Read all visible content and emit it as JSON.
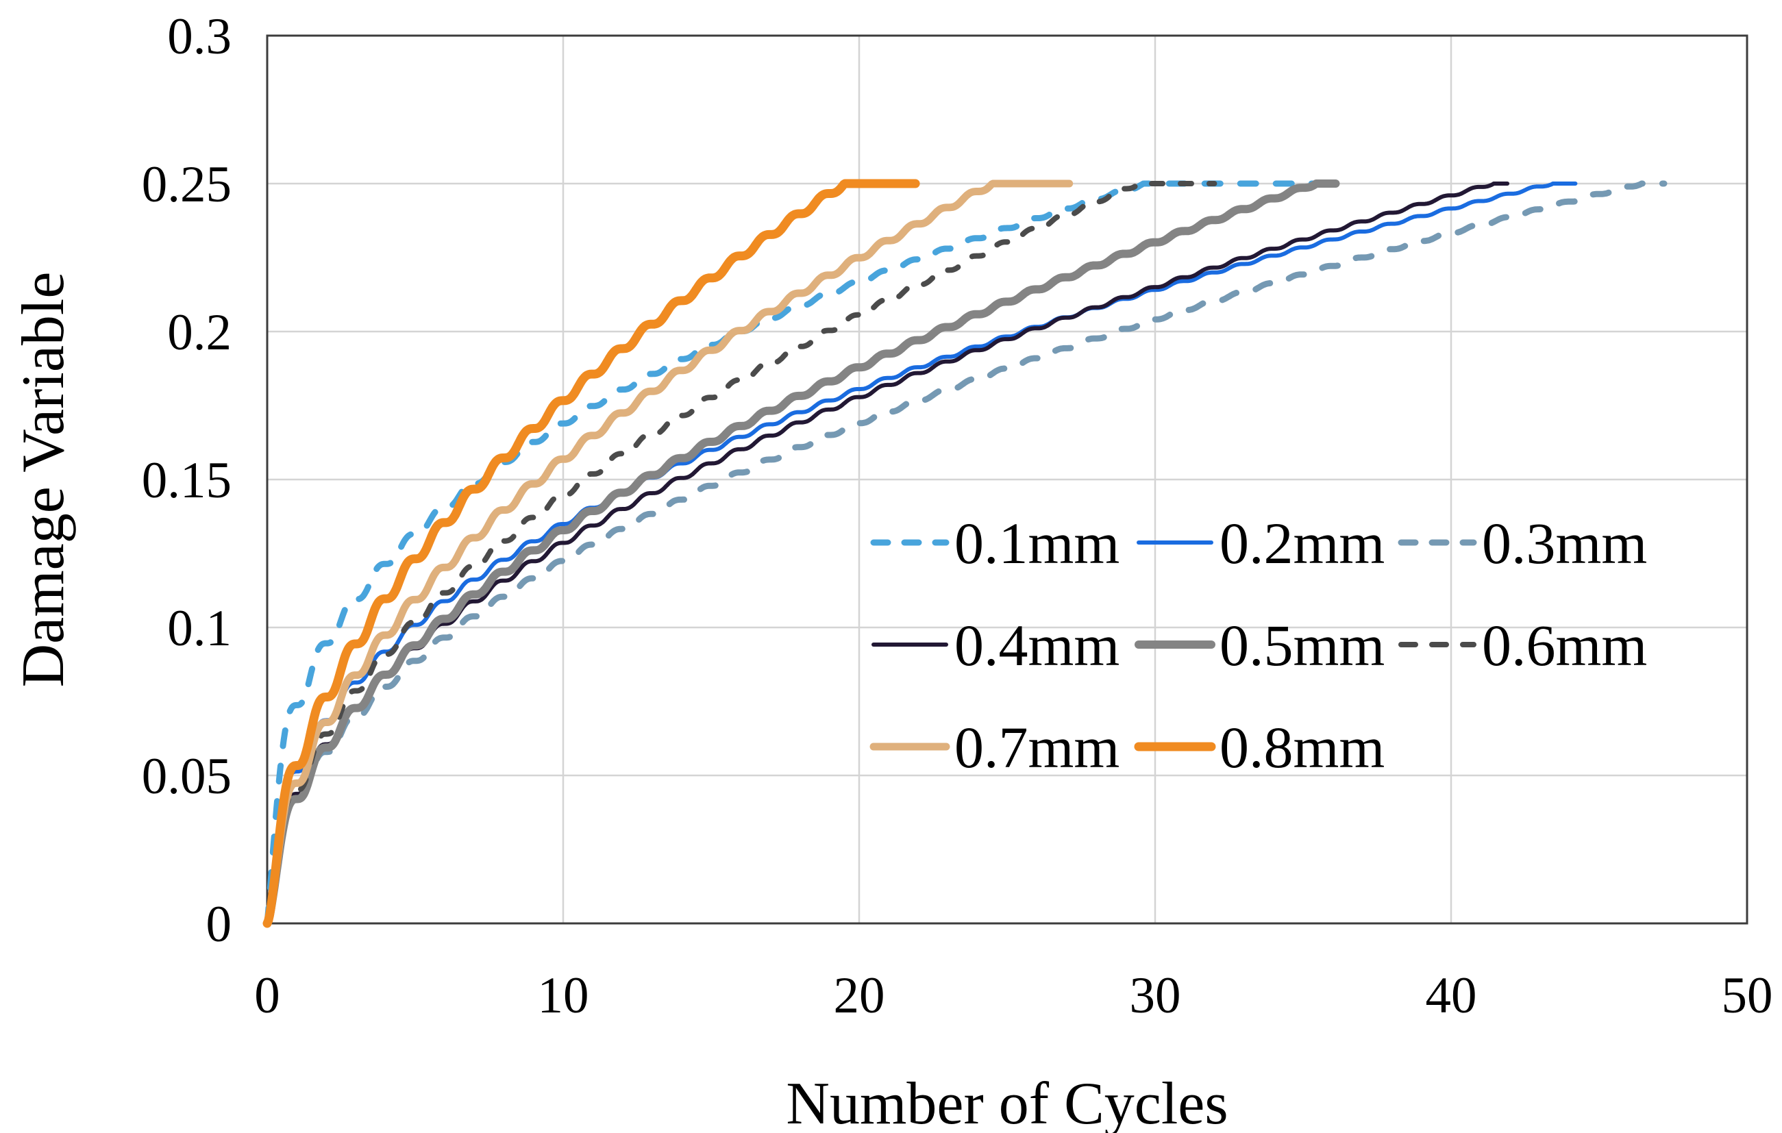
{
  "chart_data": {
    "type": "line",
    "title": "",
    "xlabel": "Number of Cycles",
    "ylabel": "Damage Variable",
    "xlim": [
      0,
      50
    ],
    "ylim": [
      0,
      0.3
    ],
    "xticks": [
      [
        0,
        "0"
      ],
      [
        10,
        "10"
      ],
      [
        20,
        "20"
      ],
      [
        30,
        "30"
      ],
      [
        40,
        "40"
      ],
      [
        50,
        "50"
      ]
    ],
    "yticks": [
      [
        0,
        "0"
      ],
      [
        0.05,
        "0.05"
      ],
      [
        0.1,
        "0.1"
      ],
      [
        0.15,
        "0.15"
      ],
      [
        0.2,
        "0.2"
      ],
      [
        0.25,
        "0.25"
      ],
      [
        0.3,
        "0.3"
      ]
    ],
    "x_gridlines": [
      10,
      20,
      30,
      40
    ],
    "y_gridlines": [
      0.05,
      0.1,
      0.15,
      0.2,
      0.25
    ],
    "grid": true,
    "grid_color": "#d4d4d4",
    "border_color": "#3c3c3c",
    "damage_at_failure": 0.25,
    "step_per_cycle": true,
    "legend_position": "inside lower-right, 3 columns, no border",
    "series": [
      {
        "name": "0.1mm",
        "color": "#48a4dc",
        "style": "dashed",
        "stroke_width": 9,
        "dash": [
          23,
          29
        ],
        "cycles_to_failure": 29.7,
        "curve_end": 35.7,
        "shape_exponent": 0.36,
        "damage_at_cycle_10": 0.175
      },
      {
        "name": "0.2mm",
        "color": "#1a6ce0",
        "style": "solid",
        "stroke_width": 6,
        "dash": null,
        "cycles_to_failure": 43.4,
        "curve_end": 44.2,
        "shape_exponent": 0.42,
        "damage_at_cycle_10": 0.135
      },
      {
        "name": "0.3mm",
        "color": "#7599b3",
        "style": "dashed",
        "stroke_width": 9,
        "dash": [
          23,
          29
        ],
        "cycles_to_failure": 46.4,
        "curve_end": 47.2,
        "shape_exponent": 0.465,
        "damage_at_cycle_10": 0.122
      },
      {
        "name": "0.4mm",
        "color": "#221834",
        "style": "solid",
        "stroke_width": 6,
        "dash": null,
        "cycles_to_failure": 41.4,
        "curve_end": 41.9,
        "shape_exponent": 0.468,
        "damage_at_cycle_10": 0.128
      },
      {
        "name": "0.5mm",
        "color": "#848484",
        "style": "solid",
        "stroke_width": 12,
        "dash": null,
        "cycles_to_failure": 35.4,
        "curve_end": 36.1,
        "shape_exponent": 0.5,
        "damage_at_cycle_10": 0.132
      },
      {
        "name": "0.6mm",
        "color": "#4b4b4b",
        "style": "dashed",
        "stroke_width": 8,
        "dash": [
          16,
          26
        ],
        "cycles_to_failure": 29.4,
        "curve_end": 32.0,
        "shape_exponent": 0.507,
        "damage_at_cycle_10": 0.145
      },
      {
        "name": "0.7mm",
        "color": "#dfb07c",
        "style": "solid",
        "stroke_width": 11,
        "dash": null,
        "cycles_to_failure": 24.5,
        "curve_end": 27.1,
        "shape_exponent": 0.52,
        "damage_at_cycle_10": 0.157
      },
      {
        "name": "0.8mm",
        "color": "#f08b21",
        "style": "solid",
        "stroke_width": 13,
        "dash": null,
        "cycles_to_failure": 19.5,
        "curve_end": 21.9,
        "shape_exponent": 0.52,
        "damage_at_cycle_10": 0.177
      }
    ],
    "legend_rows": [
      [
        0,
        1,
        2
      ],
      [
        3,
        4,
        5
      ],
      [
        6,
        7
      ]
    ]
  }
}
